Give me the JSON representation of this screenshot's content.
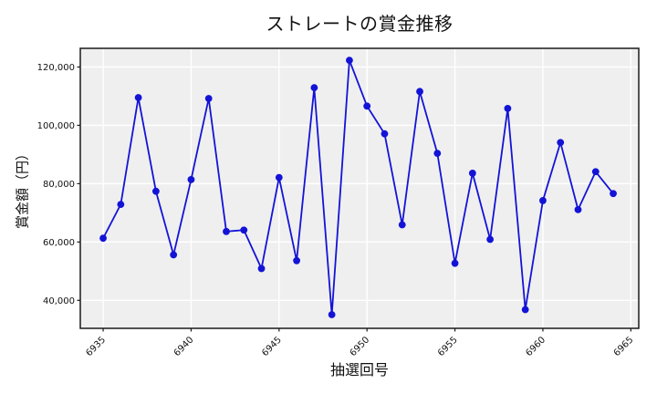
{
  "colors": {
    "line": "#1313d7",
    "marker": "#1313d7",
    "plot_bg": "#efefef",
    "grid": "#ffffff",
    "spine": "#1a1a1a",
    "tick": "#1a1a1a",
    "text": "#111111",
    "figure_bg": "#ffffff"
  },
  "chart_data": {
    "type": "line",
    "title": "ストレートの賞金推移",
    "xlabel": "抽選回号",
    "ylabel": "賞金額（円）",
    "x": [
      6935,
      6936,
      6937,
      6938,
      6939,
      6940,
      6941,
      6942,
      6943,
      6944,
      6945,
      6946,
      6947,
      6948,
      6949,
      6950,
      6951,
      6952,
      6953,
      6954,
      6955,
      6956,
      6957,
      6958,
      6959,
      6960,
      6961,
      6962,
      6963,
      6964
    ],
    "y": [
      61300,
      72900,
      109500,
      77400,
      55600,
      81400,
      109200,
      63600,
      64100,
      50900,
      82100,
      53600,
      112900,
      35100,
      122300,
      106600,
      97100,
      65900,
      111600,
      90400,
      52700,
      83600,
      60900,
      105800,
      36800,
      74200,
      94100,
      71100,
      84100,
      76600
    ],
    "xlim": [
      6933.7,
      6965.45
    ],
    "ylim": [
      30400,
      126400
    ],
    "xticks": [
      6935,
      6940,
      6945,
      6950,
      6955,
      6960,
      6965
    ],
    "xtick_labels": [
      "6935",
      "6940",
      "6945",
      "6950",
      "6955",
      "6960",
      "6965"
    ],
    "yticks": [
      40000,
      60000,
      80000,
      100000,
      120000
    ],
    "ytick_labels": [
      "40,000",
      "60,000",
      "80,000",
      "100,000",
      "120,000"
    ],
    "grid": true,
    "legend": null,
    "marker": "circle",
    "xtick_rotation": -45
  }
}
